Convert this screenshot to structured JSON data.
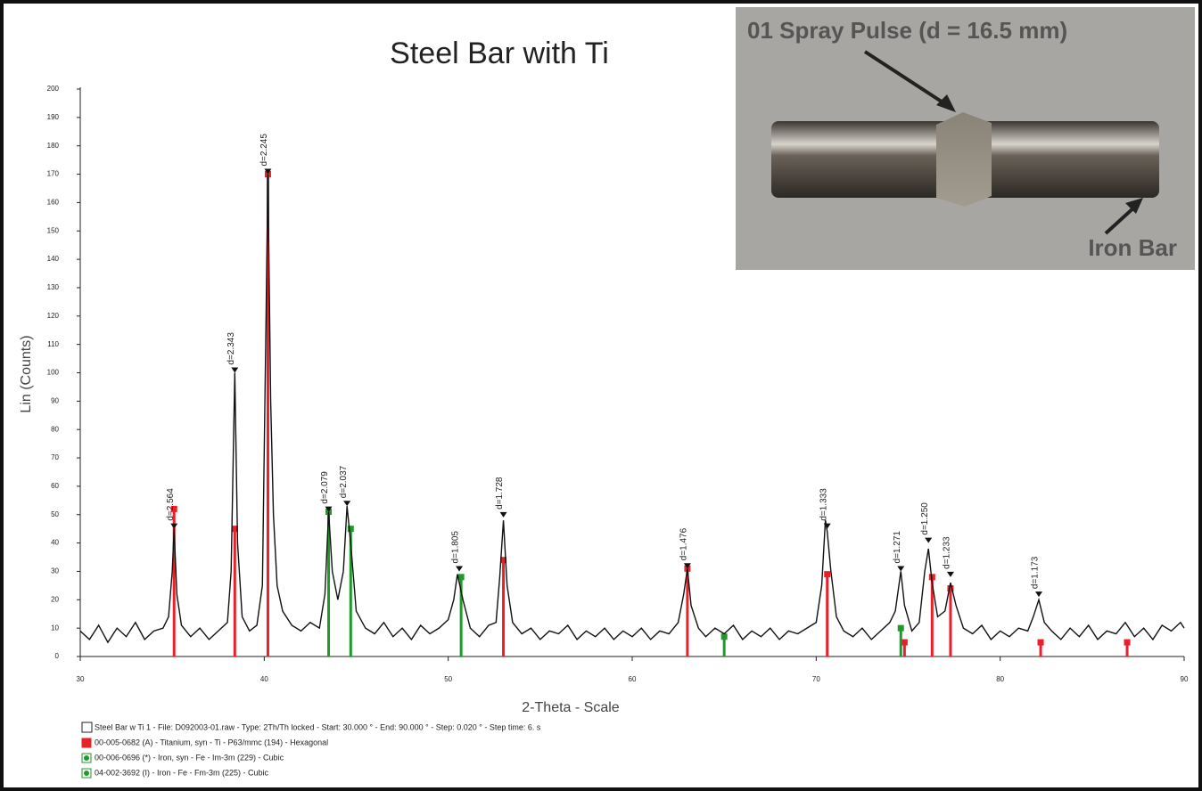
{
  "chart_data": {
    "type": "line",
    "title": "Steel Bar with Ti",
    "x_label": "2-Theta - Scale",
    "y_label": "Lin (Counts)",
    "xlim": [
      30,
      90
    ],
    "ylim": [
      0,
      200
    ],
    "xticks": [
      30,
      40,
      50,
      60,
      70,
      80,
      90
    ],
    "yticks": [
      0,
      10,
      20,
      30,
      40,
      50,
      60,
      70,
      80,
      90,
      100,
      110,
      120,
      130,
      140,
      150,
      160,
      170,
      180,
      190,
      200
    ],
    "x": [
      30,
      30.5,
      31,
      31.5,
      32,
      32.5,
      33,
      33.5,
      34,
      34.5,
      34.8,
      35.0,
      35.1,
      35.25,
      35.5,
      36,
      36.5,
      37,
      37.5,
      38.0,
      38.2,
      38.4,
      38.55,
      38.8,
      39.2,
      39.6,
      39.9,
      40.1,
      40.2,
      40.35,
      40.5,
      40.7,
      41.0,
      41.5,
      42,
      42.5,
      43.0,
      43.3,
      43.5,
      43.7,
      44.0,
      44.3,
      44.5,
      44.7,
      45.0,
      45.5,
      46,
      46.5,
      47,
      47.5,
      48,
      48.5,
      49,
      49.5,
      50.0,
      50.3,
      50.5,
      50.8,
      51.2,
      51.7,
      52.2,
      52.6,
      52.8,
      53.0,
      53.2,
      53.5,
      54,
      54.5,
      55,
      55.5,
      56,
      56.5,
      57,
      57.5,
      58,
      58.5,
      59,
      59.5,
      60,
      60.5,
      61,
      61.5,
      62,
      62.5,
      62.8,
      63.0,
      63.2,
      63.6,
      64,
      64.5,
      65,
      65.5,
      66,
      66.5,
      67,
      67.5,
      68,
      68.5,
      69,
      69.5,
      70.0,
      70.3,
      70.5,
      70.6,
      70.8,
      71.1,
      71.5,
      72,
      72.5,
      73,
      73.5,
      74.0,
      74.3,
      74.6,
      74.8,
      75.2,
      75.6,
      75.9,
      76.1,
      76.3,
      76.6,
      77.0,
      77.3,
      77.6,
      78.0,
      78.5,
      79,
      79.5,
      80,
      80.5,
      81,
      81.5,
      81.8,
      82.1,
      82.4,
      82.8,
      83.3,
      83.8,
      84.3,
      84.8,
      85.3,
      85.8,
      86.3,
      86.8,
      87.3,
      87.8,
      88.3,
      88.8,
      89.3,
      89.8,
      90
    ],
    "series": [
      {
        "name": "Steel Bar w Ti 1 - File: D092003-01.raw - Type: 2Th/Th locked - Start: 30.000 ° - End: 90.000 ° - Step: 0.020 ° - Step time: 6. s",
        "color": "#111111",
        "values": [
          9,
          6,
          11,
          5,
          10,
          7,
          12,
          6,
          9,
          10,
          14,
          30,
          45,
          22,
          11,
          7,
          10,
          6,
          9,
          12,
          30,
          100,
          40,
          14,
          9,
          11,
          25,
          120,
          170,
          90,
          50,
          25,
          16,
          11,
          9,
          12,
          10,
          22,
          51,
          30,
          20,
          30,
          53,
          40,
          16,
          10,
          8,
          12,
          7,
          10,
          6,
          11,
          8,
          10,
          13,
          20,
          29,
          20,
          10,
          7,
          11,
          12,
          28,
          48,
          25,
          12,
          8,
          10,
          6,
          9,
          8,
          11,
          6,
          9,
          7,
          10,
          6,
          9,
          7,
          10,
          6,
          9,
          8,
          12,
          22,
          31,
          18,
          10,
          7,
          10,
          8,
          11,
          6,
          9,
          7,
          10,
          6,
          9,
          8,
          10,
          12,
          25,
          48,
          44,
          30,
          14,
          9,
          7,
          10,
          6,
          9,
          12,
          16,
          30,
          18,
          9,
          12,
          30,
          38,
          26,
          14,
          16,
          26,
          18,
          10,
          8,
          11,
          6,
          9,
          7,
          10,
          9,
          14,
          20,
          12,
          9,
          6,
          10,
          7,
          11,
          6,
          9,
          8,
          12,
          7,
          10,
          6,
          11,
          9,
          12,
          10
        ]
      }
    ],
    "references": [
      {
        "name": "00-005-0682 (A) - Titanium, syn - Ti - P63/mmc (194) - Hexagonal",
        "color": "#e8202a",
        "x": [
          35.1,
          38.4,
          40.2,
          53.0,
          63.0,
          70.6,
          74.8,
          76.3,
          77.3,
          82.2,
          86.9
        ],
        "values": [
          52,
          45,
          170,
          34,
          31,
          29,
          5,
          28,
          24,
          5,
          5
        ]
      },
      {
        "name": "00-006-0696 (*) - Iron, syn - Fe - Im-3m (229) - Cubic",
        "color": "#1f9a2a",
        "x": [
          44.7,
          65.0,
          74.6
        ],
        "values": [
          45,
          7,
          10
        ]
      },
      {
        "name": "04-002-3692 (I) - Iron - Fe - Fm-3m (225) - Cubic",
        "color": "#1f9a2a",
        "x": [
          43.5,
          50.7
        ],
        "values": [
          51,
          28
        ]
      }
    ],
    "annotations": [
      {
        "x": 35.1,
        "y": 45,
        "label": "d=2.564"
      },
      {
        "x": 38.4,
        "y": 100,
        "label": "d=2.343"
      },
      {
        "x": 40.2,
        "y": 170,
        "label": "d=2.245"
      },
      {
        "x": 43.5,
        "y": 51,
        "label": "d=2.079"
      },
      {
        "x": 44.5,
        "y": 53,
        "label": "d=2.037"
      },
      {
        "x": 50.6,
        "y": 30,
        "label": "d=1.805"
      },
      {
        "x": 53.0,
        "y": 49,
        "label": "d=1.728"
      },
      {
        "x": 63.0,
        "y": 31,
        "label": "d=1.476"
      },
      {
        "x": 70.6,
        "y": 45,
        "label": "d=1.333"
      },
      {
        "x": 74.6,
        "y": 30,
        "label": "d=1.271"
      },
      {
        "x": 76.1,
        "y": 40,
        "label": "d=1.250"
      },
      {
        "x": 77.3,
        "y": 28,
        "label": "d=1.233"
      },
      {
        "x": 82.1,
        "y": 21,
        "label": "d=1.173"
      }
    ]
  },
  "photo": {
    "caption": "01 Spray Pulse (d = 16.5 mm)",
    "label": "Iron Bar"
  }
}
